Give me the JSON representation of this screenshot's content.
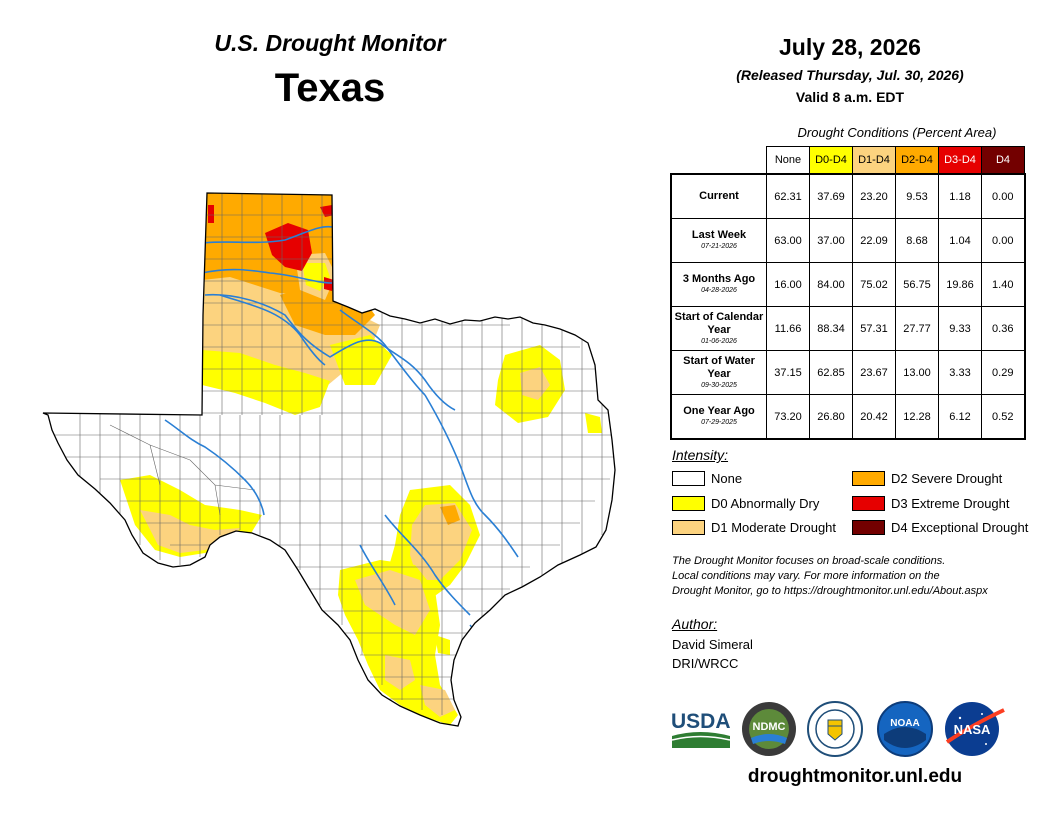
{
  "header": {
    "brand": "U.S. Drought Monitor",
    "state": "Texas",
    "date": "July 28, 2026",
    "released": "(Released Thursday, Jul. 30, 2026)",
    "valid": "Valid 8 a.m. EDT"
  },
  "stats_table": {
    "caption": "Drought Conditions (Percent Area)",
    "columns": [
      {
        "label": "None",
        "bg": "#ffffff",
        "fg": "#000000"
      },
      {
        "label": "D0-D4",
        "bg": "#ffff00",
        "fg": "#000000"
      },
      {
        "label": "D1-D4",
        "bg": "#fcd37f",
        "fg": "#000000"
      },
      {
        "label": "D2-D4",
        "bg": "#ffaa00",
        "fg": "#000000"
      },
      {
        "label": "D3-D4",
        "bg": "#e60000",
        "fg": "#ffffff"
      },
      {
        "label": "D4",
        "bg": "#730000",
        "fg": "#ffffff"
      }
    ],
    "rows": [
      {
        "label": "Current",
        "sub": "",
        "values": [
          "62.31",
          "37.69",
          "23.20",
          "9.53",
          "1.18",
          "0.00"
        ]
      },
      {
        "label": "Last Week",
        "sub": "07-21-2026",
        "values": [
          "63.00",
          "37.00",
          "22.09",
          "8.68",
          "1.04",
          "0.00"
        ]
      },
      {
        "label": "3 Months Ago",
        "sub": "04-28-2026",
        "values": [
          "16.00",
          "84.00",
          "75.02",
          "56.75",
          "19.86",
          "1.40"
        ]
      },
      {
        "label": "Start of Calendar Year",
        "sub": "01-06-2026",
        "values": [
          "11.66",
          "88.34",
          "57.31",
          "27.77",
          "9.33",
          "0.36"
        ]
      },
      {
        "label": "Start of Water Year",
        "sub": "09-30-2025",
        "values": [
          "37.15",
          "62.85",
          "23.67",
          "13.00",
          "3.33",
          "0.29"
        ]
      },
      {
        "label": "One Year Ago",
        "sub": "07-29-2025",
        "values": [
          "73.20",
          "26.80",
          "20.42",
          "12.28",
          "6.12",
          "0.52"
        ]
      }
    ]
  },
  "legend": {
    "title": "Intensity:",
    "items": [
      {
        "label": "None",
        "color": "#ffffff"
      },
      {
        "label": "D0 Abnormally Dry",
        "color": "#ffff00"
      },
      {
        "label": "D1 Moderate Drought",
        "color": "#fcd37f"
      },
      {
        "label": "D2 Severe Drought",
        "color": "#ffaa00"
      },
      {
        "label": "D3 Extreme Drought",
        "color": "#e60000"
      },
      {
        "label": "D4 Exceptional Drought",
        "color": "#730000"
      }
    ]
  },
  "note": {
    "line1": "The Drought Monitor focuses on broad-scale conditions.",
    "line2": "Local conditions may vary. For more information on the",
    "line3": "Drought Monitor, go to https://droughtmonitor.unl.edu/About.aspx"
  },
  "author": {
    "heading": "Author:",
    "name": "David Simeral",
    "org": "DRI/WRCC"
  },
  "logos": {
    "usda": "USDA",
    "ndmc": "NDMC",
    "noaa": "NOAA",
    "nasa": "NASA"
  },
  "site": "droughtmonitor.unl.edu"
}
